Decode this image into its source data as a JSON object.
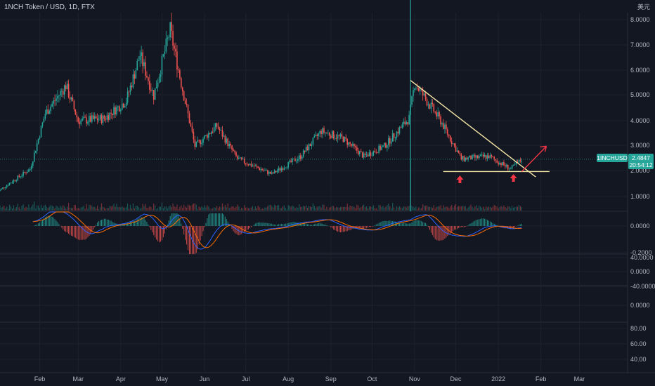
{
  "header": {
    "title": "1NCH Token / USD, 1D, FTX",
    "currency": "美元"
  },
  "price_badge": {
    "symbol": "1INCHUSD",
    "price": "2.4847",
    "countdown": "20:54:12"
  },
  "colors": {
    "background": "#131722",
    "up": "#26a69a",
    "down": "#ef5350",
    "trendline": "#f5e6a6",
    "arrow": "#f23645",
    "macd_line": "#2962ff",
    "signal_line": "#ff6d00",
    "grid": "#1e222d"
  },
  "chart_data": [
    {
      "type": "candlestick",
      "title": "1NCH Token / USD, 1D, FTX",
      "y_axis_labels": [
        "8.0000",
        "7.0000",
        "6.0000",
        "5.0000",
        "4.0000",
        "3.0000",
        "2.0000",
        "1.0000"
      ],
      "ylim": [
        0.6,
        8.3
      ],
      "x_axis_labels": [
        "Feb",
        "Mar",
        "Apr",
        "May",
        "Jun",
        "Jul",
        "Aug",
        "Sep",
        "Oct",
        "Nov",
        "Dec",
        "2022",
        "Feb",
        "Mar"
      ],
      "x_range": [
        "2021-01-01",
        "2022-03-31"
      ],
      "approx_closes": [
        {
          "date": "2021-01-01",
          "value": 1.2
        },
        {
          "date": "2021-01-25",
          "value": 2.1
        },
        {
          "date": "2021-02-05",
          "value": 4.3
        },
        {
          "date": "2021-02-20",
          "value": 5.4
        },
        {
          "date": "2021-03-01",
          "value": 4.0
        },
        {
          "date": "2021-03-20",
          "value": 4.1
        },
        {
          "date": "2021-04-05",
          "value": 4.8
        },
        {
          "date": "2021-04-15",
          "value": 6.6
        },
        {
          "date": "2021-04-25",
          "value": 5.0
        },
        {
          "date": "2021-05-07",
          "value": 7.6
        },
        {
          "date": "2021-05-15",
          "value": 5.5
        },
        {
          "date": "2021-05-25",
          "value": 3.0
        },
        {
          "date": "2021-06-10",
          "value": 3.8
        },
        {
          "date": "2021-06-25",
          "value": 2.5
        },
        {
          "date": "2021-07-20",
          "value": 1.9
        },
        {
          "date": "2021-08-10",
          "value": 2.6
        },
        {
          "date": "2021-08-25",
          "value": 3.6
        },
        {
          "date": "2021-09-10",
          "value": 3.3
        },
        {
          "date": "2021-09-25",
          "value": 2.6
        },
        {
          "date": "2021-10-10",
          "value": 3.0
        },
        {
          "date": "2021-10-28",
          "value": 4.1
        },
        {
          "date": "2021-11-01",
          "value": 5.5
        },
        {
          "date": "2021-11-20",
          "value": 4.0
        },
        {
          "date": "2021-12-05",
          "value": 2.5
        },
        {
          "date": "2021-12-25",
          "value": 2.6
        },
        {
          "date": "2022-01-10",
          "value": 2.1
        },
        {
          "date": "2022-01-18",
          "value": 2.48
        }
      ],
      "trendline_resistance": [
        {
          "date": "2021-10-29",
          "value": 5.6
        },
        {
          "date": "2022-01-20",
          "value": 1.9
        }
      ],
      "trendline_support": [
        {
          "date": "2021-11-28",
          "value": 2.0
        },
        {
          "date": "2022-01-28",
          "value": 2.0
        }
      ],
      "last_price": 2.4847
    },
    {
      "type": "macd",
      "y_axis_labels": [
        "0.0000",
        "-0.2000"
      ]
    },
    {
      "type": "oscillator",
      "y_axis_labels": [
        "40.0000",
        "0.0000",
        "-40.0000"
      ]
    },
    {
      "type": "oscillator",
      "y_axis_labels": [
        "0.0000"
      ]
    },
    {
      "type": "rsi",
      "y_axis_labels": [
        "80.00",
        "60.00",
        "40.00"
      ]
    }
  ]
}
